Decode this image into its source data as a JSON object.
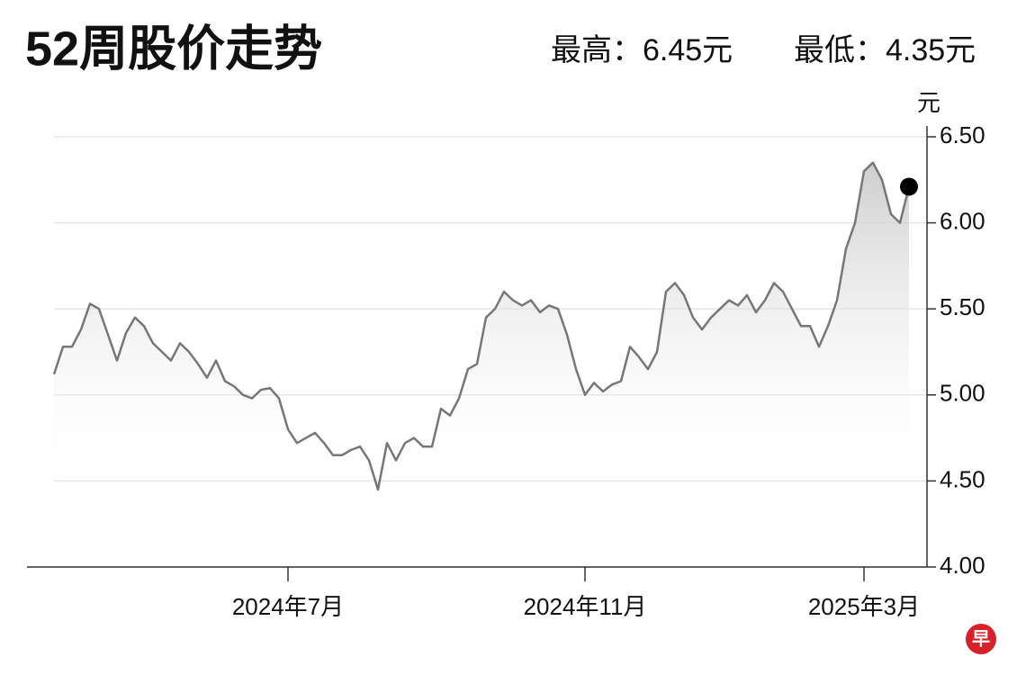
{
  "chart_data": {
    "type": "line",
    "title": "52周股价走势",
    "annotations": [
      "最高：6.45元",
      "最低：4.35元"
    ],
    "y_axis_label": "元",
    "logo": "早",
    "color": "#777777",
    "grid": true,
    "categories": [
      null,
      null,
      null,
      null,
      null,
      null,
      null,
      null,
      null,
      null,
      null,
      null,
      null,
      null,
      null,
      null,
      null,
      null,
      null,
      null,
      null,
      null,
      null,
      null,
      null,
      null,
      "2024年7月",
      null,
      null,
      null,
      null,
      null,
      null,
      null,
      null,
      null,
      null,
      null,
      null,
      null,
      null,
      null,
      null,
      null,
      null,
      null,
      null,
      null,
      null,
      null,
      null,
      null,
      null,
      null,
      null,
      null,
      null,
      null,
      null,
      "2024年11月",
      null,
      null,
      null,
      null,
      null,
      null,
      null,
      null,
      null,
      null,
      null,
      null,
      null,
      null,
      null,
      null,
      null,
      null,
      null,
      null,
      null,
      null,
      null,
      null,
      null,
      null,
      null,
      null,
      null,
      null,
      "2025年3月",
      null,
      null,
      null,
      null,
      null
    ],
    "values": [
      5.12,
      5.28,
      5.28,
      5.38,
      5.53,
      5.5,
      5.35,
      5.2,
      5.36,
      5.45,
      5.4,
      5.3,
      5.25,
      5.2,
      5.3,
      5.25,
      5.18,
      5.1,
      5.2,
      5.08,
      5.05,
      5.0,
      4.98,
      5.03,
      5.04,
      4.98,
      4.8,
      4.72,
      4.75,
      4.78,
      4.72,
      4.65,
      4.65,
      4.68,
      4.7,
      4.62,
      4.45,
      4.72,
      4.62,
      4.72,
      4.75,
      4.7,
      4.7,
      4.92,
      4.88,
      4.98,
      5.15,
      5.18,
      5.45,
      5.5,
      5.6,
      5.55,
      5.52,
      5.55,
      5.48,
      5.52,
      5.5,
      5.35,
      5.15,
      5.0,
      5.07,
      5.02,
      5.06,
      5.08,
      5.28,
      5.22,
      5.15,
      5.25,
      5.6,
      5.65,
      5.58,
      5.45,
      5.38,
      5.45,
      5.5,
      5.55,
      5.52,
      5.58,
      5.48,
      5.55,
      5.65,
      5.6,
      5.5,
      5.4,
      5.4,
      5.28,
      5.4,
      5.55,
      5.85,
      6.0,
      6.3,
      6.35,
      6.25,
      6.05,
      6.0,
      6.21
    ],
    "ylim": [
      4.0,
      6.5
    ],
    "yticks": [
      {
        "value": 4.0,
        "label": "4.00"
      },
      {
        "value": 4.5,
        "label": "4.50"
      },
      {
        "value": 5.0,
        "label": "5.00"
      },
      {
        "value": 5.5,
        "label": "5.50"
      },
      {
        "value": 6.0,
        "label": "6.00"
      },
      {
        "value": 6.5,
        "label": "6.50"
      }
    ]
  }
}
